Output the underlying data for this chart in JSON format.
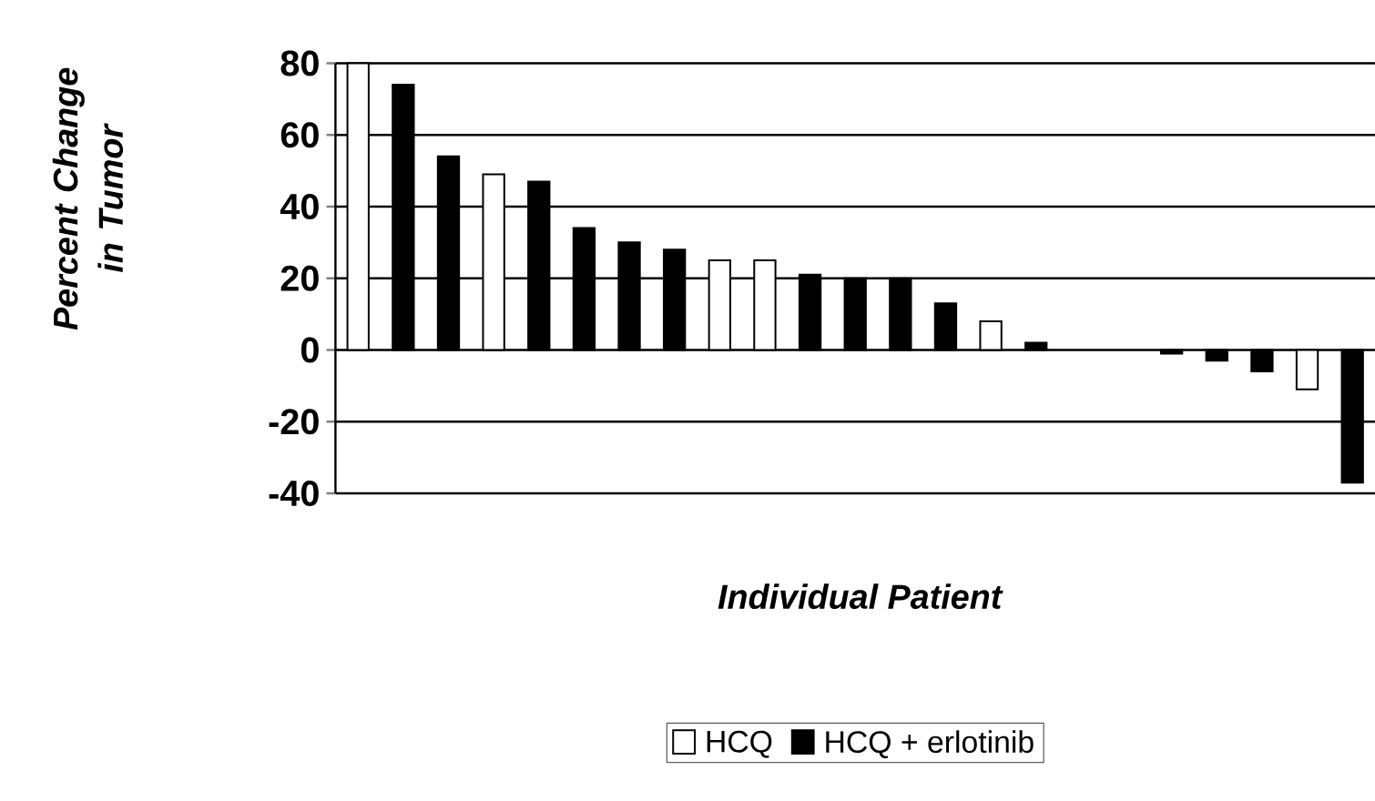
{
  "chart_data": {
    "type": "bar",
    "ylabel": "Percent Change in Tumor",
    "xlabel": "Individual Patient",
    "categories": [
      null,
      null,
      null,
      null,
      null,
      null,
      null,
      null,
      null,
      null,
      null,
      null,
      null,
      null,
      null,
      null,
      null,
      null,
      null,
      null,
      null,
      null,
      null
    ],
    "series": [
      {
        "name": "HCQ",
        "color": "#ffffff",
        "values": [
          80,
          null,
          null,
          49,
          null,
          null,
          null,
          null,
          25,
          25,
          null,
          null,
          null,
          null,
          8,
          null,
          null,
          null,
          null,
          null,
          null,
          -11,
          null
        ]
      },
      {
        "name": "HCQ + erlotinib",
        "color": "#000000",
        "values": [
          null,
          74,
          54,
          null,
          47,
          34,
          30,
          28,
          null,
          null,
          21,
          20,
          20,
          13,
          null,
          2,
          null,
          null,
          -1,
          -3,
          -6,
          null,
          -37
        ]
      }
    ],
    "ylim": [
      -40,
      80
    ],
    "yticks": [
      -40,
      -20,
      0,
      20,
      40,
      60,
      80
    ],
    "grid": "y",
    "legend": "bottom"
  }
}
